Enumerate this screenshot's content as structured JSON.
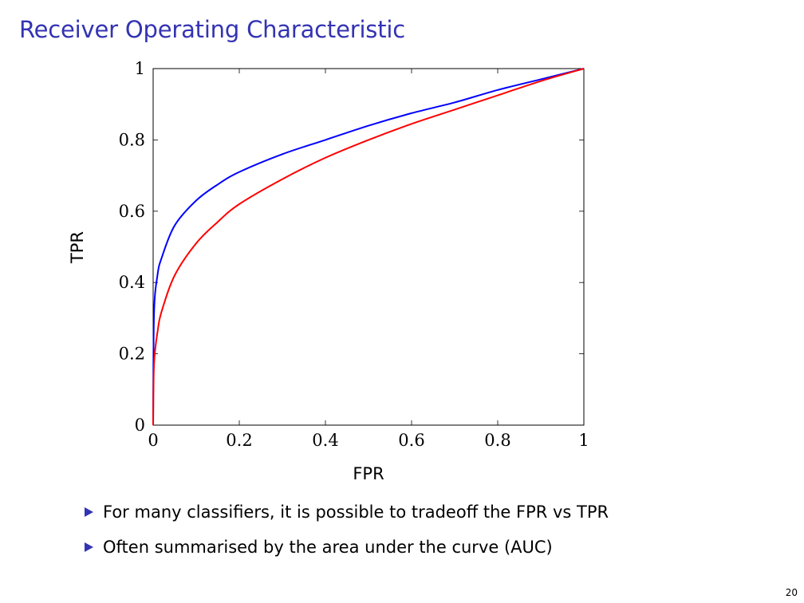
{
  "slide": {
    "title": "Receiver Operating Characteristic",
    "page_number": "20",
    "bullets": [
      "For many classifiers, it is possible to tradeoff the FPR vs TPR",
      "Often summarised by the area under the curve (AUC)"
    ]
  },
  "chart_data": {
    "type": "line",
    "title": "",
    "xlabel": "FPR",
    "ylabel": "TPR",
    "xlim": [
      0,
      1
    ],
    "ylim": [
      0,
      1
    ],
    "xticks": [
      0,
      0.2,
      0.4,
      0.6,
      0.8,
      1
    ],
    "xtick_labels": [
      "0",
      "0.2",
      "0.4",
      "0.6",
      "0.8",
      "1"
    ],
    "yticks": [
      0,
      0.2,
      0.4,
      0.6,
      0.8,
      1
    ],
    "ytick_labels": [
      "0",
      "0.2",
      "0.4",
      "0.6",
      "0.8",
      "1"
    ],
    "grid": false,
    "legend": "none",
    "series": [
      {
        "color": "#0000ff",
        "x": [
          0,
          0.002,
          0.01,
          0.02,
          0.05,
          0.1,
          0.15,
          0.2,
          0.3,
          0.4,
          0.5,
          0.6,
          0.7,
          0.8,
          0.9,
          1
        ],
        "y": [
          0,
          0.31,
          0.42,
          0.47,
          0.56,
          0.63,
          0.675,
          0.71,
          0.76,
          0.8,
          0.84,
          0.875,
          0.905,
          0.94,
          0.97,
          1
        ]
      },
      {
        "color": "#ff0000",
        "x": [
          0,
          0.002,
          0.01,
          0.02,
          0.05,
          0.1,
          0.15,
          0.2,
          0.3,
          0.4,
          0.5,
          0.6,
          0.7,
          0.8,
          0.9,
          1
        ],
        "y": [
          0,
          0.17,
          0.26,
          0.32,
          0.42,
          0.51,
          0.57,
          0.62,
          0.69,
          0.75,
          0.8,
          0.845,
          0.885,
          0.925,
          0.965,
          1
        ]
      }
    ]
  }
}
